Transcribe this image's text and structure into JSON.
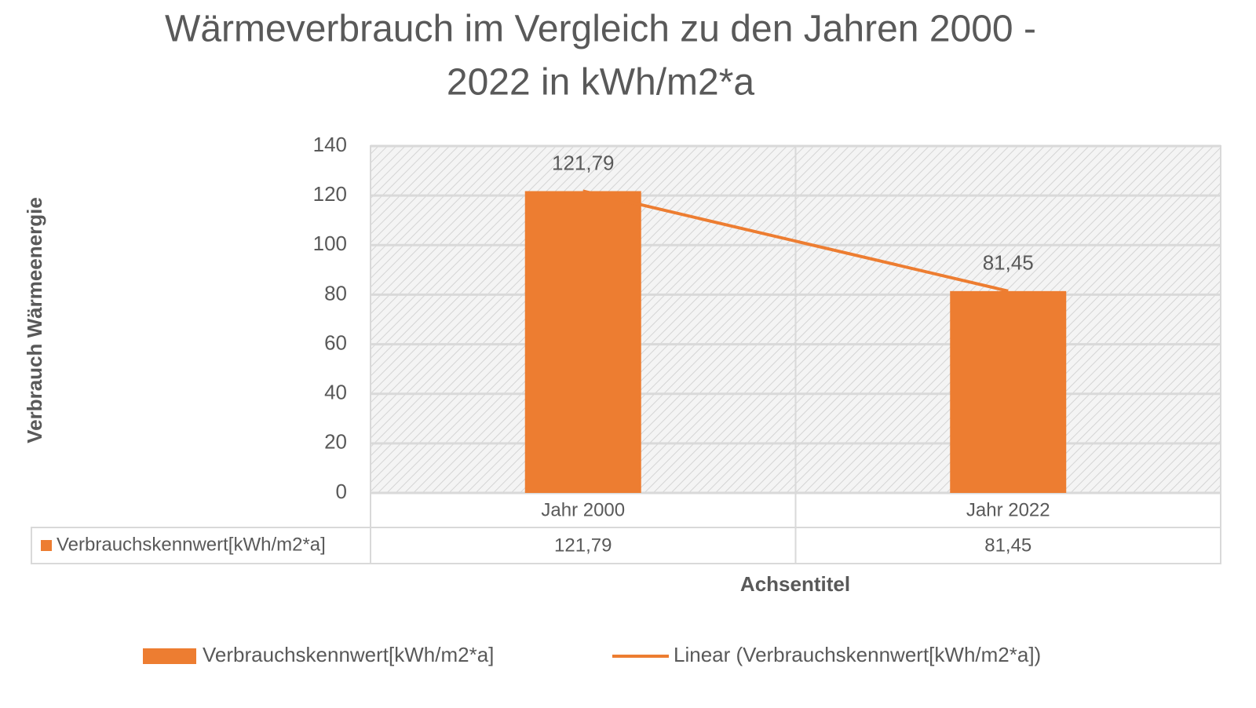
{
  "chart_data": {
    "type": "bar",
    "title": [
      "Wärmeverbrauch im Vergleich zu den Jahren 2000 -",
      "2022 in kWh/m2*a"
    ],
    "x_label": "Achsentitel",
    "y_label": "Verbrauch Wärmeenergie",
    "categories": [
      "Jahr 2000",
      "Jahr 2022"
    ],
    "series": [
      {
        "name": "Verbrauchskennwert[kWh/m2*a]",
        "color": "#ed7d31",
        "values": [
          121.79,
          81.45
        ],
        "value_labels": [
          "121,79",
          "81,45"
        ]
      }
    ],
    "trendline": {
      "name": "Linear (Verbrauchskennwert[kWh/m2*a])",
      "type": "linear",
      "color": "#ed7d31"
    },
    "ylim": [
      0,
      140
    ],
    "yticks": [
      0,
      20,
      40,
      60,
      80,
      100,
      120,
      140
    ],
    "grid": true,
    "data_table": true,
    "legend": "bottom"
  }
}
